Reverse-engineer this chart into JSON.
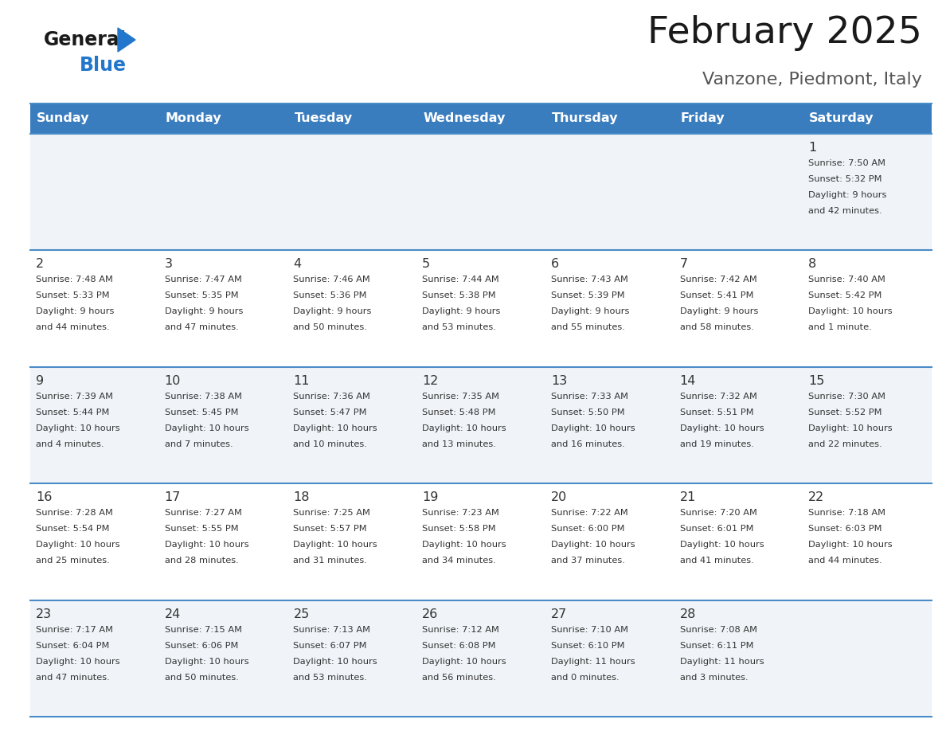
{
  "title": "February 2025",
  "subtitle": "Vanzone, Piedmont, Italy",
  "header_color": "#3a7dbf",
  "header_text_color": "#ffffff",
  "day_names": [
    "Sunday",
    "Monday",
    "Tuesday",
    "Wednesday",
    "Thursday",
    "Friday",
    "Saturday"
  ],
  "row_colors": [
    "#f0f4f8",
    "#ffffff",
    "#f0f4f8",
    "#ffffff",
    "#f0f4f8"
  ],
  "line_color": "#4a8cc7",
  "title_color": "#1a1a1a",
  "subtitle_color": "#555555",
  "cell_text_color": "#333333",
  "day_number_color": "#333333",
  "logo_general_color": "#1a1a1a",
  "logo_blue_color": "#2277cc",
  "logo_triangle_color": "#2277cc",
  "weeks": [
    {
      "days": [
        {
          "day": null,
          "info": null
        },
        {
          "day": null,
          "info": null
        },
        {
          "day": null,
          "info": null
        },
        {
          "day": null,
          "info": null
        },
        {
          "day": null,
          "info": null
        },
        {
          "day": null,
          "info": null
        },
        {
          "day": 1,
          "info": "Sunrise: 7:50 AM\nSunset: 5:32 PM\nDaylight: 9 hours\nand 42 minutes."
        }
      ]
    },
    {
      "days": [
        {
          "day": 2,
          "info": "Sunrise: 7:48 AM\nSunset: 5:33 PM\nDaylight: 9 hours\nand 44 minutes."
        },
        {
          "day": 3,
          "info": "Sunrise: 7:47 AM\nSunset: 5:35 PM\nDaylight: 9 hours\nand 47 minutes."
        },
        {
          "day": 4,
          "info": "Sunrise: 7:46 AM\nSunset: 5:36 PM\nDaylight: 9 hours\nand 50 minutes."
        },
        {
          "day": 5,
          "info": "Sunrise: 7:44 AM\nSunset: 5:38 PM\nDaylight: 9 hours\nand 53 minutes."
        },
        {
          "day": 6,
          "info": "Sunrise: 7:43 AM\nSunset: 5:39 PM\nDaylight: 9 hours\nand 55 minutes."
        },
        {
          "day": 7,
          "info": "Sunrise: 7:42 AM\nSunset: 5:41 PM\nDaylight: 9 hours\nand 58 minutes."
        },
        {
          "day": 8,
          "info": "Sunrise: 7:40 AM\nSunset: 5:42 PM\nDaylight: 10 hours\nand 1 minute."
        }
      ]
    },
    {
      "days": [
        {
          "day": 9,
          "info": "Sunrise: 7:39 AM\nSunset: 5:44 PM\nDaylight: 10 hours\nand 4 minutes."
        },
        {
          "day": 10,
          "info": "Sunrise: 7:38 AM\nSunset: 5:45 PM\nDaylight: 10 hours\nand 7 minutes."
        },
        {
          "day": 11,
          "info": "Sunrise: 7:36 AM\nSunset: 5:47 PM\nDaylight: 10 hours\nand 10 minutes."
        },
        {
          "day": 12,
          "info": "Sunrise: 7:35 AM\nSunset: 5:48 PM\nDaylight: 10 hours\nand 13 minutes."
        },
        {
          "day": 13,
          "info": "Sunrise: 7:33 AM\nSunset: 5:50 PM\nDaylight: 10 hours\nand 16 minutes."
        },
        {
          "day": 14,
          "info": "Sunrise: 7:32 AM\nSunset: 5:51 PM\nDaylight: 10 hours\nand 19 minutes."
        },
        {
          "day": 15,
          "info": "Sunrise: 7:30 AM\nSunset: 5:52 PM\nDaylight: 10 hours\nand 22 minutes."
        }
      ]
    },
    {
      "days": [
        {
          "day": 16,
          "info": "Sunrise: 7:28 AM\nSunset: 5:54 PM\nDaylight: 10 hours\nand 25 minutes."
        },
        {
          "day": 17,
          "info": "Sunrise: 7:27 AM\nSunset: 5:55 PM\nDaylight: 10 hours\nand 28 minutes."
        },
        {
          "day": 18,
          "info": "Sunrise: 7:25 AM\nSunset: 5:57 PM\nDaylight: 10 hours\nand 31 minutes."
        },
        {
          "day": 19,
          "info": "Sunrise: 7:23 AM\nSunset: 5:58 PM\nDaylight: 10 hours\nand 34 minutes."
        },
        {
          "day": 20,
          "info": "Sunrise: 7:22 AM\nSunset: 6:00 PM\nDaylight: 10 hours\nand 37 minutes."
        },
        {
          "day": 21,
          "info": "Sunrise: 7:20 AM\nSunset: 6:01 PM\nDaylight: 10 hours\nand 41 minutes."
        },
        {
          "day": 22,
          "info": "Sunrise: 7:18 AM\nSunset: 6:03 PM\nDaylight: 10 hours\nand 44 minutes."
        }
      ]
    },
    {
      "days": [
        {
          "day": 23,
          "info": "Sunrise: 7:17 AM\nSunset: 6:04 PM\nDaylight: 10 hours\nand 47 minutes."
        },
        {
          "day": 24,
          "info": "Sunrise: 7:15 AM\nSunset: 6:06 PM\nDaylight: 10 hours\nand 50 minutes."
        },
        {
          "day": 25,
          "info": "Sunrise: 7:13 AM\nSunset: 6:07 PM\nDaylight: 10 hours\nand 53 minutes."
        },
        {
          "day": 26,
          "info": "Sunrise: 7:12 AM\nSunset: 6:08 PM\nDaylight: 10 hours\nand 56 minutes."
        },
        {
          "day": 27,
          "info": "Sunrise: 7:10 AM\nSunset: 6:10 PM\nDaylight: 11 hours\nand 0 minutes."
        },
        {
          "day": 28,
          "info": "Sunrise: 7:08 AM\nSunset: 6:11 PM\nDaylight: 11 hours\nand 3 minutes."
        },
        {
          "day": null,
          "info": null
        }
      ]
    }
  ]
}
